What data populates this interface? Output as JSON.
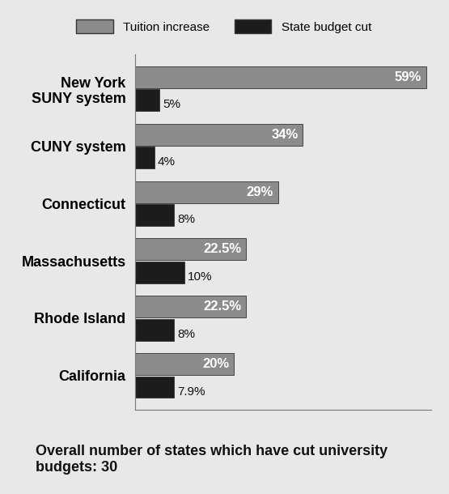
{
  "chart_data": {
    "type": "bar",
    "orientation": "horizontal",
    "categories": [
      "New York\nSUNY system",
      "CUNY system",
      "Connecticut",
      "Massachusetts",
      "Rhode Island",
      "California"
    ],
    "series": [
      {
        "name": "Tuition increase",
        "color": "#8c8c8c",
        "values": [
          59,
          34,
          29,
          22.5,
          22.5,
          20
        ],
        "value_labels": [
          "59%",
          "34%",
          "29%",
          "22.5%",
          "22.5%",
          "20%"
        ]
      },
      {
        "name": "State budget cut",
        "color": "#1c1c1c",
        "values": [
          5,
          4,
          8,
          10,
          8,
          7.9
        ],
        "value_labels": [
          "5%",
          "4%",
          "8%",
          "10%",
          "8%",
          "7.9%"
        ]
      }
    ],
    "annotations": [
      "Overall number of states which have cut university budgets: 30"
    ],
    "xlim": [
      0,
      60
    ],
    "xticks": [],
    "data_labels": true,
    "tick_labels": "y",
    "legend": "upper center",
    "grid": false
  }
}
